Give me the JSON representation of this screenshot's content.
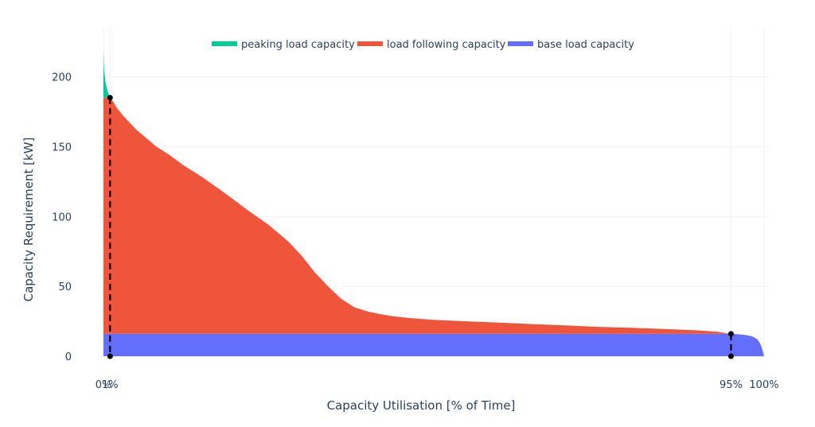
{
  "chart_data": {
    "type": "area",
    "xlabel": "Capacity Utilisation [% of Time]",
    "ylabel": "Capacity Requirement [kW]",
    "xlim": [
      0,
      100
    ],
    "ylim": [
      0,
      235
    ],
    "y_ticks": [
      0,
      50,
      100,
      150,
      200
    ],
    "x_ticks": [
      {
        "value": 0,
        "label": "0%"
      },
      {
        "value": 1,
        "label": "1%"
      },
      {
        "value": 95,
        "label": "95%"
      },
      {
        "value": 100,
        "label": "100%"
      }
    ],
    "grid": true,
    "legend_position": "top-center",
    "series": [
      {
        "name": "peaking load capacity",
        "color": "#00cc96"
      },
      {
        "name": "load following capacity",
        "color": "#ef553b"
      },
      {
        "name": "base load capacity",
        "color": "#636efa"
      }
    ],
    "load_duration_curve": {
      "x": [
        0,
        0.1,
        0.3,
        0.6,
        1,
        1.5,
        2,
        3,
        4,
        5,
        6,
        8,
        10,
        12,
        15,
        18,
        20,
        22,
        25,
        28,
        30,
        32,
        34,
        36,
        38,
        40,
        41,
        42,
        44,
        46,
        50,
        55,
        60,
        65,
        70,
        75,
        80,
        85,
        90,
        93,
        95,
        96,
        97,
        98,
        98.5,
        99,
        99.3,
        99.6,
        99.8,
        100
      ],
      "y": [
        218,
        205,
        196,
        190,
        185,
        182,
        178,
        172,
        167,
        162,
        158,
        150,
        144,
        137,
        128,
        118,
        111,
        104,
        94,
        82,
        72,
        60,
        50,
        41,
        35,
        32,
        31,
        30,
        28.5,
        27.5,
        26,
        25,
        24,
        23,
        22,
        21,
        20.3,
        19.5,
        18.5,
        17.5,
        16,
        15.8,
        15.3,
        14.5,
        13.5,
        12,
        10,
        7,
        4,
        0
      ]
    },
    "base_load_level": 16,
    "peak_threshold": 185,
    "markers": [
      {
        "x": 1,
        "y_top": 185,
        "y_bottom": 0
      },
      {
        "x": 95,
        "y_top": 16,
        "y_bottom": 0
      }
    ]
  }
}
